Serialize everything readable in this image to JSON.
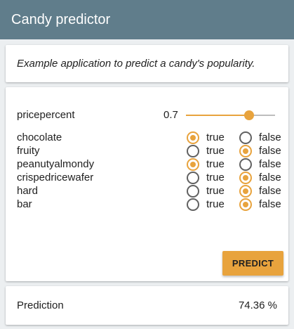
{
  "app": {
    "title": "Candy predictor"
  },
  "description": "Example application to predict a candy's popularity.",
  "slider": {
    "label": "pricepercent",
    "value": "0.7",
    "fraction": 0.71
  },
  "options": {
    "true_label": "true",
    "false_label": "false"
  },
  "features": [
    {
      "name": "chocolate",
      "selected": "true"
    },
    {
      "name": "fruity",
      "selected": "false"
    },
    {
      "name": "peanutyalmondy",
      "selected": "true"
    },
    {
      "name": "crispedricewafer",
      "selected": "false"
    },
    {
      "name": "hard",
      "selected": "false"
    },
    {
      "name": "bar",
      "selected": "false"
    }
  ],
  "predict_button": "PREDICT",
  "result": {
    "label": "Prediction",
    "value": "74.36 %"
  },
  "colors": {
    "header": "#607d8b",
    "accent": "#e8a33d",
    "background": "#eceff1"
  }
}
